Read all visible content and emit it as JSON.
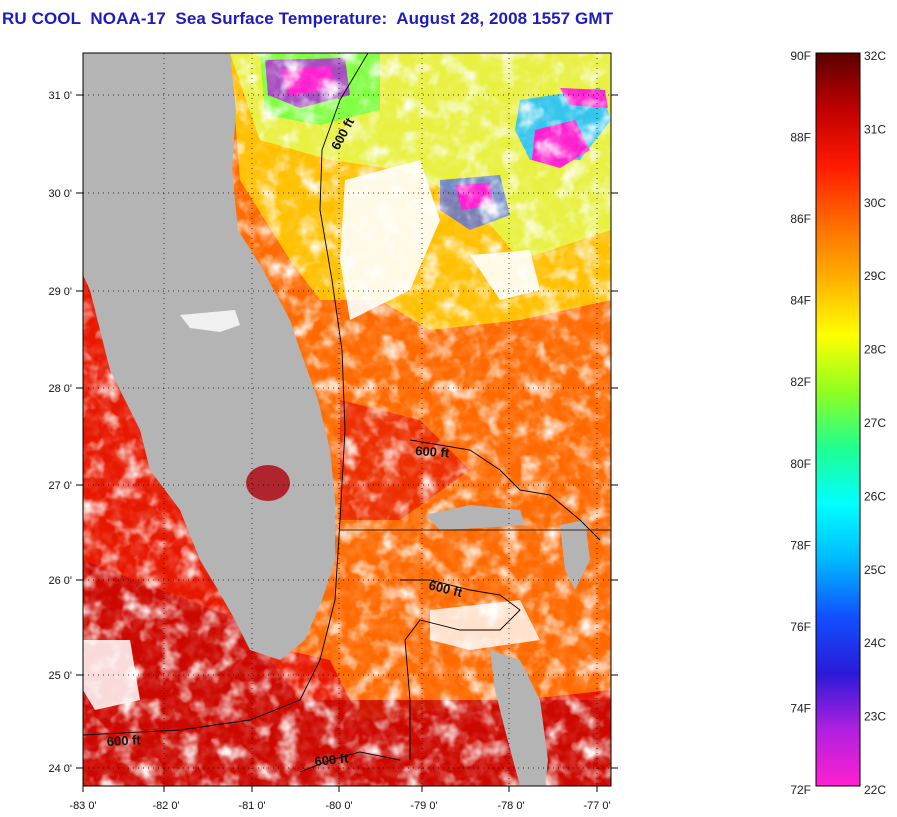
{
  "title": "RU COOL  NOAA-17  Sea Surface Temperature:  August 28, 2008 1557 GMT",
  "map": {
    "lat_ticks": [
      "31 0'",
      "30 0'",
      "29 0'",
      "28 0'",
      "27 0'",
      "26 0'",
      "25 0'",
      "24 0'"
    ],
    "lon_ticks": [
      "-83 0'",
      "-82 0'",
      "-81 0'",
      "-80 0'",
      "-79 0'",
      "-78 0'",
      "-77 0'"
    ],
    "contour_label": "600 ft",
    "colors": {
      "land": "#b4b4b4",
      "cloud": "#ffffff",
      "frame": "#000000"
    }
  },
  "colorbar": {
    "f_labels": [
      "90F",
      "88F",
      "86F",
      "84F",
      "82F",
      "80F",
      "78F",
      "76F",
      "74F",
      "72F"
    ],
    "c_labels": [
      "32C",
      "31C",
      "30C",
      "29C",
      "28C",
      "27C",
      "26C",
      "25C",
      "24C",
      "23C",
      "22C"
    ],
    "colors": [
      "#ff20d0",
      "#b020e0",
      "#2a1ad8",
      "#1050ff",
      "#00b8ff",
      "#00ffff",
      "#20ff90",
      "#90ff20",
      "#ffff00",
      "#ffb000",
      "#ff6a00",
      "#ff1a00",
      "#c00000",
      "#5a0000"
    ]
  }
}
